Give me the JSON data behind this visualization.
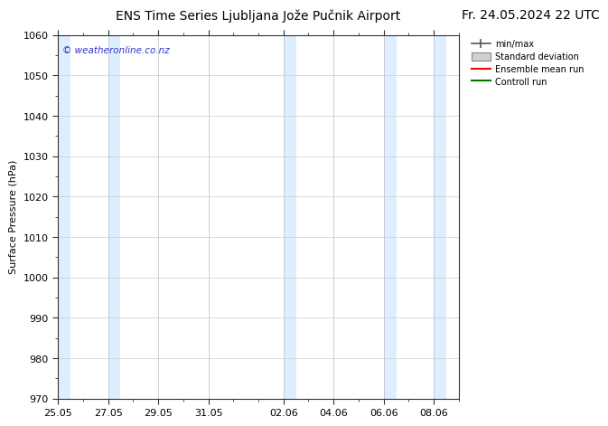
{
  "title_left": "ENS Time Series Ljubljana Jože Pučnik Airport",
  "title_right": "Fr. 24.05.2024 22 UTC",
  "ylabel": "Surface Pressure (hPa)",
  "ylim": [
    970,
    1060
  ],
  "yticks": [
    970,
    980,
    990,
    1000,
    1010,
    1020,
    1030,
    1040,
    1050,
    1060
  ],
  "x_tick_labels": [
    "25.05",
    "27.05",
    "29.05",
    "31.05",
    "02.06",
    "04.06",
    "06.06",
    "08.06"
  ],
  "x_tick_positions": [
    0,
    2,
    4,
    6,
    9,
    11,
    13,
    15
  ],
  "x_min": 0,
  "x_max": 16,
  "shade_color": "#ddeeff",
  "bg_color": "#ffffff",
  "plot_bg_color": "#ffffff",
  "legend_labels": [
    "min/max",
    "Standard deviation",
    "Ensemble mean run",
    "Controll run"
  ],
  "legend_colors": [
    "#606060",
    "#c0c0c0",
    "#ff0000",
    "#008000"
  ],
  "watermark": "© weatheronline.co.nz",
  "watermark_color": "#3333cc",
  "title_fontsize": 10,
  "axis_fontsize": 8,
  "tick_fontsize": 8
}
